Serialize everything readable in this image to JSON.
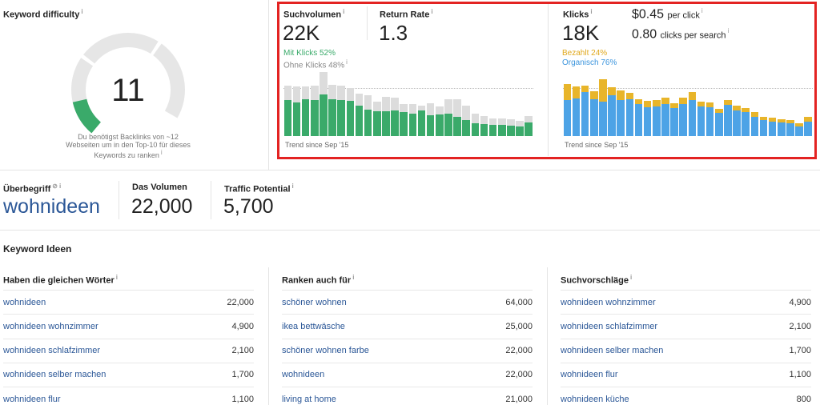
{
  "kd": {
    "title": "Keyword difficulty",
    "score": "11",
    "score_value": 11,
    "note": [
      "Du benötigst Backlinks von ~12",
      "Webseiten um in den Top-10 für dieses",
      "Keywords zu ranken"
    ]
  },
  "volume": {
    "label": "Suchvolumen",
    "value": "22K",
    "with_clicks": "Mit Klicks 52%",
    "without_clicks": "Ohne Klicks 48%",
    "trend": "Trend since Sep '15"
  },
  "return_rate": {
    "label": "Return Rate",
    "value": "1.3"
  },
  "clicks": {
    "label": "Klicks",
    "value": "18K",
    "cpc": "$0.45",
    "cpc_unit": "per click",
    "cps": "0.80",
    "cps_unit": "clicks per search",
    "paid": "Bezahlt 24%",
    "organic": "Organisch 76%",
    "trend": "Trend since Sep '15"
  },
  "overview": {
    "parent_label": "Überbegriff",
    "parent_value": "wohnideen",
    "volume_label": "Das Volumen",
    "volume_value": "22,000",
    "traffic_label": "Traffic Potential",
    "traffic_value": "5,700"
  },
  "ideas": {
    "title": "Keyword Ideen",
    "columns": [
      {
        "heading": "Haben die gleichen Wörter",
        "rows": [
          {
            "kw": "wohnideen",
            "vol": "22,000"
          },
          {
            "kw": "wohnideen wohnzimmer",
            "vol": "4,900"
          },
          {
            "kw": "wohnideen schlafzimmer",
            "vol": "2,100"
          },
          {
            "kw": "wohnideen selber machen",
            "vol": "1,700"
          },
          {
            "kw": "wohnideen flur",
            "vol": "1,100"
          }
        ]
      },
      {
        "heading": "Ranken auch für",
        "rows": [
          {
            "kw": "schöner wohnen",
            "vol": "64,000"
          },
          {
            "kw": "ikea bettwäsche",
            "vol": "25,000"
          },
          {
            "kw": "schöner wohnen farbe",
            "vol": "22,000"
          },
          {
            "kw": "wohnideen",
            "vol": "22,000"
          },
          {
            "kw": "living at home",
            "vol": "21,000"
          }
        ]
      },
      {
        "heading": "Suchvorschläge",
        "rows": [
          {
            "kw": "wohnideen wohnzimmer",
            "vol": "4,900"
          },
          {
            "kw": "wohnideen schlafzimmer",
            "vol": "2,100"
          },
          {
            "kw": "wohnideen selber machen",
            "vol": "1,700"
          },
          {
            "kw": "wohnideen flur",
            "vol": "1,100"
          },
          {
            "kw": "wohnideen küche",
            "vol": "800"
          }
        ]
      }
    ]
  },
  "chart_data": [
    {
      "type": "bar",
      "stacked": true,
      "colors": {
        "with_clicks": "#3aaa6a",
        "without_clicks": "#dcdcdc"
      },
      "with_clicks": [
        45,
        42,
        46,
        45,
        52,
        46,
        45,
        44,
        38,
        33,
        31,
        31,
        32,
        30,
        28,
        32,
        26,
        27,
        28,
        24,
        20,
        16,
        15,
        14,
        14,
        13,
        12,
        17
      ],
      "without_clicks": [
        18,
        20,
        16,
        18,
        28,
        18,
        18,
        16,
        15,
        18,
        12,
        18,
        16,
        10,
        12,
        6,
        15,
        10,
        18,
        22,
        18,
        12,
        10,
        8,
        8,
        8,
        7,
        8
      ]
    },
    {
      "type": "bar",
      "stacked": true,
      "colors": {
        "organic": "#4da3e6",
        "paid": "#e8b52a"
      },
      "organic": [
        45,
        47,
        55,
        46,
        43,
        51,
        45,
        46,
        40,
        36,
        37,
        40,
        35,
        40,
        45,
        37,
        36,
        29,
        39,
        32,
        30,
        24,
        20,
        18,
        17,
        16,
        12,
        18
      ],
      "paid": [
        20,
        15,
        8,
        10,
        28,
        10,
        12,
        8,
        6,
        8,
        8,
        8,
        6,
        8,
        10,
        6,
        6,
        5,
        6,
        6,
        5,
        6,
        4,
        5,
        4,
        4,
        4,
        6
      ]
    }
  ]
}
